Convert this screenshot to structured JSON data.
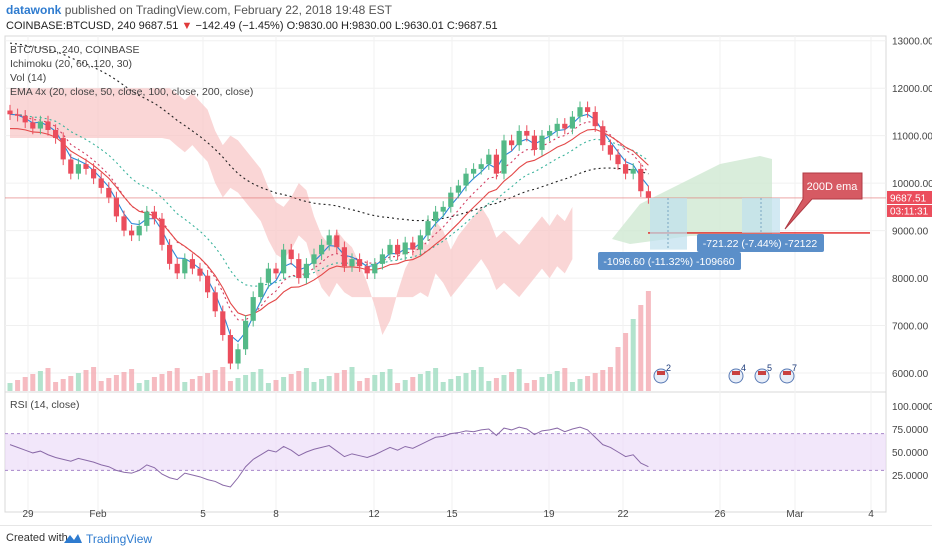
{
  "header": {
    "author": "datawonk",
    "published": "published on TradingView.com, February 22, 2018 19:48 EST",
    "symbol": "COINBASE:BTCUSD, 240",
    "last": "9687.51",
    "change_arrow": "▼",
    "change": "−142.49 (−1.45%)",
    "ohlc": "O:9830.00 H:9830.00 L:9630.01 C:9687.51"
  },
  "legend": {
    "l1": "BTC/USD, 240, COINBASE",
    "l2": "Ichimoku (20, 60, 120, 30)",
    "l3": "Vol (14)",
    "l4": "EMA 4x (20, close, 50, close, 100, close, 200, close)",
    "rsi": "RSI (14, close)"
  },
  "annotations": {
    "ema_label": "200D ema",
    "box1": "-1096.60 (-11.32%) -109660",
    "box2": "-721.22 (-7.44%) -72122",
    "price_tag": "9687.51",
    "time_tag": "03:11:31"
  },
  "events": [
    "2",
    "4",
    "5",
    "7"
  ],
  "footer": {
    "created": "Created with",
    "brand": "TradingView"
  },
  "colors": {
    "up": "#53b987",
    "down": "#eb4d5c",
    "cloud_red": "#f8c8c8",
    "cloud_green": "#cfe9d2",
    "accent": "#2e7bcf",
    "rsi_band": "#e9d7f7"
  },
  "chart_data": {
    "type": "candlestick",
    "price_axis": {
      "labels": [
        "13000.00",
        "12000.00",
        "11000.00",
        "10000.00",
        "9000.00",
        "8000.00",
        "7000.00",
        "6000.00"
      ],
      "range": [
        5600,
        13100
      ]
    },
    "rsi_axis": {
      "labels": [
        "100.0000",
        "75.0000",
        "50.0000",
        "25.0000"
      ],
      "range": [
        0,
        100
      ]
    },
    "x_labels": [
      "29",
      "Feb",
      "5",
      "8",
      "12",
      "15",
      "19",
      "22",
      "26",
      "Mar",
      "4"
    ],
    "closes": [
      11450,
      11420,
      11280,
      11150,
      11300,
      11120,
      10950,
      10500,
      10200,
      10400,
      10300,
      10100,
      9900,
      9700,
      9300,
      9000,
      8900,
      9100,
      9400,
      9250,
      8700,
      8300,
      8100,
      8400,
      8200,
      8050,
      7700,
      7300,
      6800,
      6200,
      6500,
      7100,
      7600,
      7900,
      8200,
      8100,
      8600,
      8400,
      8000,
      8300,
      8500,
      8700,
      8900,
      8650,
      8250,
      8400,
      8250,
      8100,
      8300,
      8500,
      8700,
      8500,
      8750,
      8600,
      8900,
      9200,
      9400,
      9500,
      9800,
      9950,
      10200,
      10300,
      10400,
      10600,
      10200,
      10900,
      10800,
      11100,
      11000,
      10700,
      11000,
      11100,
      11250,
      11150,
      11400,
      11600,
      11500,
      11200,
      10800,
      10600,
      10400,
      10200,
      10300,
      9830,
      9687
    ],
    "rsi": [
      58,
      55,
      52,
      49,
      51,
      47,
      44,
      42,
      40,
      43,
      41,
      39,
      36,
      34,
      30,
      28,
      27,
      30,
      36,
      33,
      26,
      22,
      20,
      27,
      25,
      23,
      20,
      18,
      14,
      12,
      22,
      34,
      42,
      47,
      52,
      50,
      56,
      52,
      46,
      50,
      53,
      55,
      57,
      51,
      45,
      48,
      46,
      44,
      47,
      51,
      55,
      52,
      56,
      54,
      58,
      62,
      66,
      67,
      70,
      71,
      73,
      72,
      74,
      75,
      68,
      76,
      74,
      77,
      75,
      69,
      73,
      74,
      76,
      72,
      75,
      77,
      74,
      66,
      58,
      55,
      50,
      45,
      47,
      38,
      34
    ]
  }
}
